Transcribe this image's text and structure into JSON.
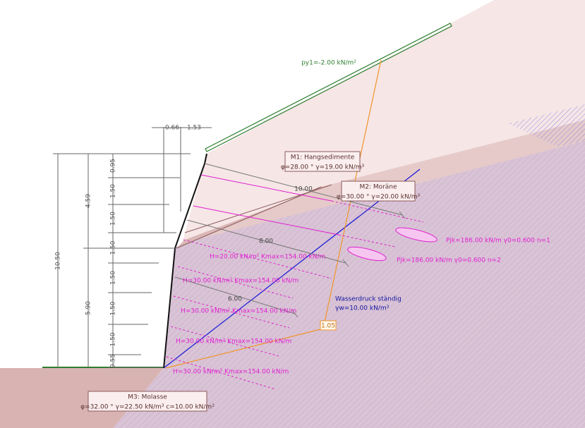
{
  "terrain_load": "py1=-2.00 kN/m²",
  "top_dims": [
    "0.66",
    "1.53"
  ],
  "left_dims": {
    "total": "10.50",
    "upper": "4.59",
    "lower": "5.90",
    "segments": [
      "0.95",
      "1.50",
      "1.50",
      "1.50",
      "1.50",
      "1.50",
      "1.50",
      "0.55"
    ]
  },
  "materials": [
    {
      "name": "M1: Hangsedimente",
      "props": "φ=28.00 ° γ=19.00 kN/m³"
    },
    {
      "name": "M2: Moräne",
      "props": "φ=30.00 ° γ=20.00 kN/m³"
    },
    {
      "name": "M3: Molasse",
      "props": "φ=32.00 ° γ=22.50 kN/m³ c=10.00 kN/m²"
    }
  ],
  "anchor_lengths": [
    "10.00",
    "8.00",
    "6.00"
  ],
  "anchor_labels": [
    "Pjk=186.00 kN/m γ0=0.600  n=1",
    "Pjk=186.00 kN/m γ0=0.600  n=2"
  ],
  "strut_labels": [
    "H=20.00 kN/m² Kmax=154.00 kN/m",
    "H=30.00 kN/m² Kmax=154.00 kN/m",
    "H=30.00 kN/m² Kmax=154.00 kN/m",
    "H=30.00 kN/m² Kmax=154.00 kN/m",
    "H=30.00 kN/m² Kmax=154.00 kN/m"
  ],
  "water": {
    "title": "Wasserdruck ständig",
    "props": "γw=10.00 kN/m³"
  },
  "factor": "1.05"
}
